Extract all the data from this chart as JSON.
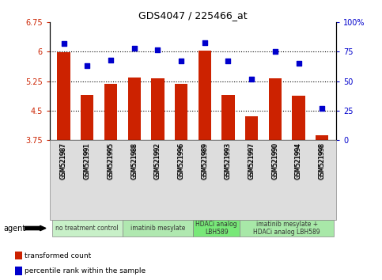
{
  "title": "GDS4047 / 225466_at",
  "samples": [
    "GSM521987",
    "GSM521991",
    "GSM521995",
    "GSM521988",
    "GSM521992",
    "GSM521996",
    "GSM521989",
    "GSM521993",
    "GSM521997",
    "GSM521990",
    "GSM521994",
    "GSM521998"
  ],
  "bar_values": [
    5.98,
    4.9,
    5.18,
    5.35,
    5.32,
    5.18,
    6.02,
    4.9,
    4.35,
    5.32,
    4.88,
    3.88
  ],
  "dot_values": [
    82,
    63,
    68,
    78,
    77,
    67,
    83,
    67,
    52,
    75,
    65,
    27
  ],
  "bar_color": "#cc2200",
  "dot_color": "#0000cc",
  "ylim_left": [
    3.75,
    6.75
  ],
  "ylim_right": [
    0,
    100
  ],
  "yticks_left": [
    3.75,
    4.5,
    5.25,
    6.0,
    6.75
  ],
  "yticks_left_labels": [
    "3.75",
    "4.5",
    "5.25",
    "6",
    "6.75"
  ],
  "yticks_right": [
    0,
    25,
    50,
    75,
    100
  ],
  "yticks_right_labels": [
    "0",
    "25",
    "50",
    "75",
    "100%"
  ],
  "hlines": [
    6.0,
    5.25,
    4.5
  ],
  "groups": [
    {
      "label": "no treatment control",
      "indices": [
        0,
        1,
        2
      ],
      "color": "#c8f0c8",
      "n": 3
    },
    {
      "label": "imatinib mesylate",
      "indices": [
        3,
        4,
        5
      ],
      "color": "#b0e8b0",
      "n": 3
    },
    {
      "label": "HDACi analog\nLBH589",
      "indices": [
        6,
        7
      ],
      "color": "#78e878",
      "n": 2
    },
    {
      "label": "imatinib mesylate +\nHDACi analog LBH589",
      "indices": [
        8,
        9,
        10,
        11
      ],
      "color": "#a8e8a8",
      "n": 4
    }
  ],
  "agent_label": "agent",
  "legend_bar_label": "transformed count",
  "legend_dot_label": "percentile rank within the sample",
  "background_plot": "#ffffff",
  "tick_color_left": "#cc2200",
  "tick_color_right": "#0000cc",
  "bar_bottom": 3.75
}
